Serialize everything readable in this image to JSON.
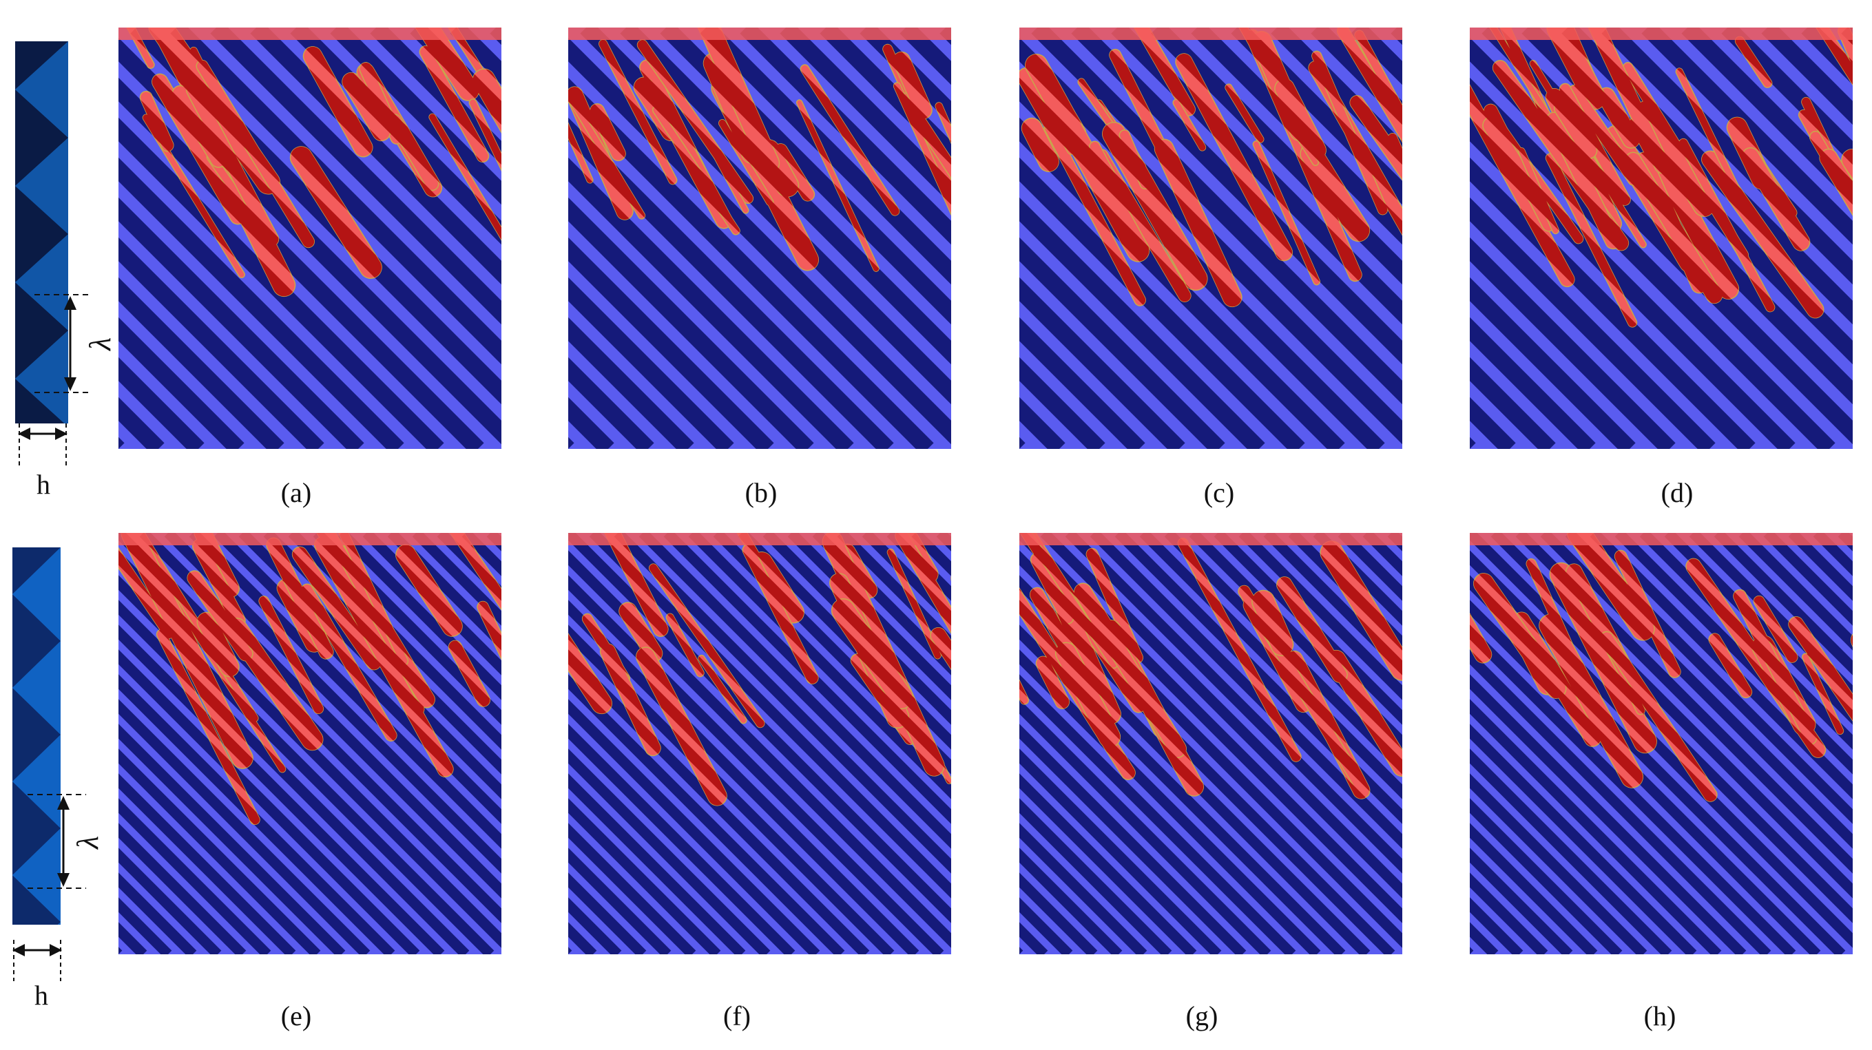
{
  "figure": {
    "row1": {
      "schematic": {
        "period_symbol": "λ",
        "height_symbol": "h"
      },
      "panels": [
        {
          "label": "(a)"
        },
        {
          "label": "(b)"
        },
        {
          "label": "(c)"
        },
        {
          "label": "(d)"
        }
      ]
    },
    "row2": {
      "schematic": {
        "period_symbol": "λ",
        "height_symbol": "h"
      },
      "panels": [
        {
          "label": "(e)"
        },
        {
          "label": "(f)"
        },
        {
          "label": "(g)"
        },
        {
          "label": "(h)"
        }
      ]
    },
    "colors": {
      "stripe_dark": "#151a7a",
      "stripe_light": "#5a5cf0",
      "region_red": "#f35c5c",
      "region_darkred": "#b41414",
      "schematic_light": "#1a8cff",
      "schematic_dark": "#0a1b45"
    }
  }
}
